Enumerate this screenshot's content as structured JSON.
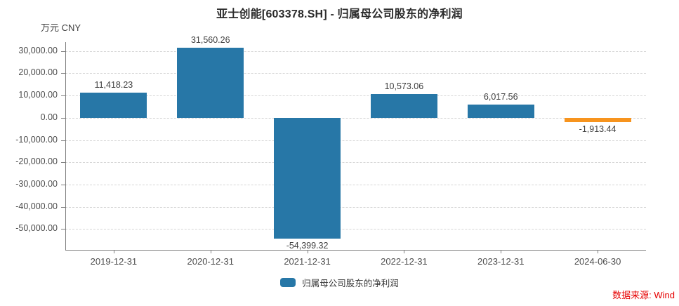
{
  "title": "亚士创能[603378.SH] - 归属母公司股东的净利润",
  "unit_label": "万元  CNY",
  "source_label": "数据来源: Wind",
  "legend": {
    "label": "归属母公司股东的净利润",
    "color": "#2777a7"
  },
  "colors": {
    "bar_default": "#2777a7",
    "bar_latest": "#f7941e",
    "source_text": "#e60000",
    "grid": "#d5d5d5",
    "axis": "#7f7f7f"
  },
  "chart_data": {
    "type": "bar",
    "title": "亚士创能[603378.SH] - 归属母公司股东的净利润",
    "unit": "万元 CNY",
    "series_name": "归属母公司股东的净利润",
    "categories": [
      "2019-12-31",
      "2020-12-31",
      "2021-12-31",
      "2022-12-31",
      "2023-12-31",
      "2024-06-30"
    ],
    "values": [
      11418.23,
      31560.26,
      -54399.32,
      10573.06,
      6017.56,
      -1913.44
    ],
    "value_labels": [
      "11,418.23",
      "31,560.26",
      "-54,399.32",
      "10,573.06",
      "6,017.56",
      "-1,913.44"
    ],
    "bar_colors": [
      "#2777a7",
      "#2777a7",
      "#2777a7",
      "#2777a7",
      "#2777a7",
      "#f7941e"
    ],
    "ylim": [
      -59300,
      34000
    ],
    "yticks": [
      30000,
      20000,
      10000,
      0,
      -10000,
      -20000,
      -30000,
      -40000,
      -50000
    ],
    "ytick_labels": [
      "30,000.00",
      "20,000.00",
      "10,000.00",
      "0.00",
      "-10,000.00",
      "-20,000.00",
      "-30,000.00",
      "-40,000.00",
      "-50,000.00"
    ],
    "grid": "horizontal-dashed",
    "legend_position": "bottom-center"
  }
}
